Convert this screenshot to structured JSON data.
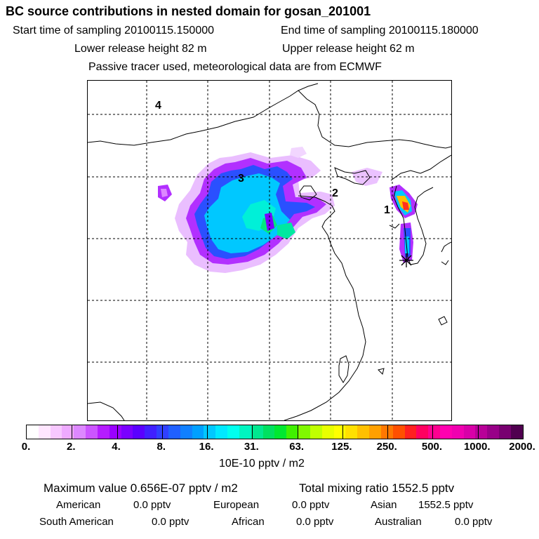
{
  "header": {
    "title": "BC  source contributions in nested domain for gosan_201001",
    "start_label": "Start time of sampling 20100115.150000",
    "end_label": "End time of sampling 20100115.180000",
    "lower_label": "Lower release height   82 m",
    "upper_label": "Upper release height   62 m",
    "tracer_note": "Passive tracer used, meteorological data are from ECMWF"
  },
  "map": {
    "region_labels": [
      "1",
      "2",
      "3",
      "4"
    ],
    "receptor_marker": "star-icon"
  },
  "colorbar": {
    "ticks": [
      "0.",
      "2.",
      "4.",
      "8.",
      "16.",
      "31.",
      "63.",
      "125.",
      "250.",
      "500.",
      "1000.",
      "2000."
    ],
    "colors": [
      "#ffffff",
      "#ffe6ff",
      "#f7c8ff",
      "#eeaaff",
      "#dd88ff",
      "#cc55ff",
      "#b51cff",
      "#9a00ff",
      "#7a00ff",
      "#5a00ff",
      "#4020ff",
      "#3040ff",
      "#2060ff",
      "#1080ff",
      "#00a0ff",
      "#00c8ff",
      "#00e8ff",
      "#00ffee",
      "#00f5c0",
      "#00e890",
      "#00e060",
      "#00e830",
      "#40f000",
      "#80f800",
      "#c0ff00",
      "#e8ff00",
      "#ffff00",
      "#ffe000",
      "#ffc000",
      "#ffa000",
      "#ff7800",
      "#ff5000",
      "#ff2020",
      "#ff0060",
      "#ff0090",
      "#ff00b0",
      "#f000b0",
      "#d800a8",
      "#b80098",
      "#980088",
      "#780070",
      "#500050"
    ],
    "units": "10E-10 pptv / m2"
  },
  "stats": {
    "max_value": "Maximum value  0.656E-07 pptv / m2",
    "total_mixing": "Total mixing ratio     1552.5 pptv",
    "american": "American",
    "american_val": "0.0 pptv",
    "european": "European",
    "european_val": "0.0 pptv",
    "asian": "Asian",
    "asian_val": "1552.5 pptv",
    "south_american": "South American",
    "south_american_val": "0.0 pptv",
    "african": "African",
    "african_val": "0.0 pptv",
    "australian": "Australian",
    "australian_val": "0.0 pptv"
  }
}
